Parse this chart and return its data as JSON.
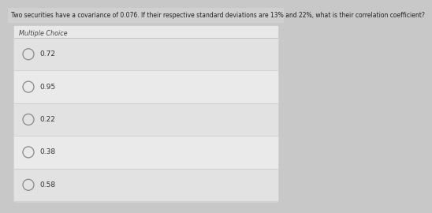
{
  "question": "Two securities have a covariance of 0.076. If their respective standard deviations are 13% and 22%, what is their correlation coefficient?",
  "section_label": "Multiple Choice",
  "choices": [
    "0.72",
    "0.95",
    "0.22",
    "0.38",
    "0.58"
  ],
  "fig_bg": "#c8c8c8",
  "panel_bg": "#e8e8e8",
  "question_bg": "#d0d0d0",
  "row_bg_odd": "#e2e2e2",
  "row_bg_even": "#eaeaea",
  "divider_color": "#c0c0c0",
  "question_color": "#222222",
  "label_color": "#444444",
  "choice_text_color": "#333333",
  "circle_color": "#888888",
  "question_fontsize": 5.5,
  "label_fontsize": 5.8,
  "choice_fontsize": 6.5
}
